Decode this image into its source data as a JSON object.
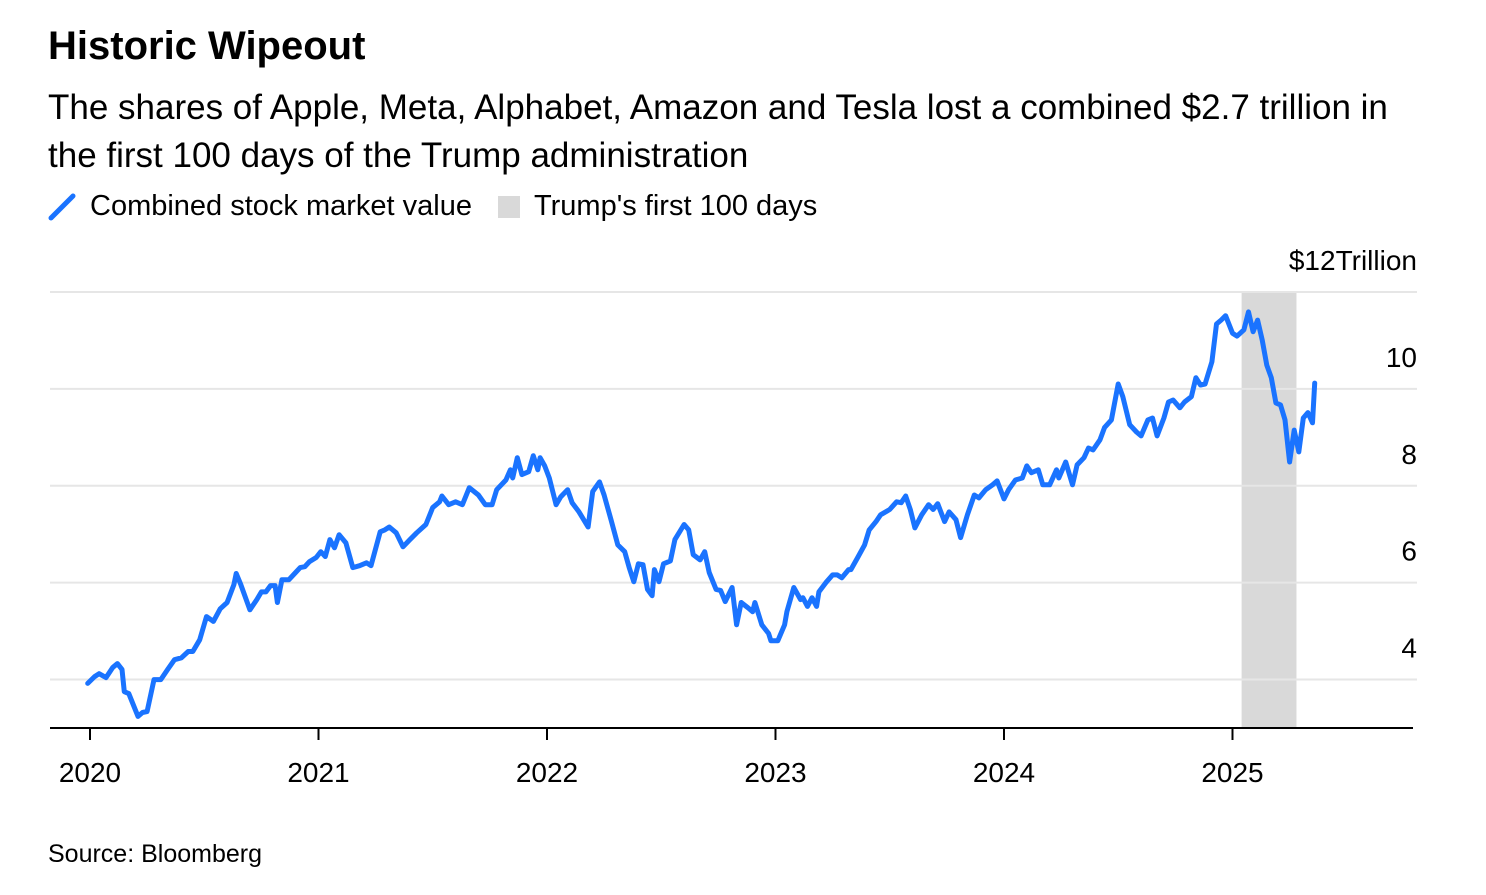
{
  "chart_data": {
    "type": "line",
    "title": "Historic Wipeout",
    "subtitle": "The shares of Apple, Meta, Alphabet, Amazon and Tesla lost a combined $2.7 trillion in the first 100 days of the Trump administration",
    "source": "Source: Bloomberg",
    "x": [
      2019.99,
      2020.02,
      2020.04,
      2020.07,
      2020.1,
      2020.12,
      2020.14,
      2020.15,
      2020.17,
      2020.21,
      2020.23,
      2020.25,
      2020.28,
      2020.31,
      2020.34,
      2020.37,
      2020.4,
      2020.43,
      2020.45,
      2020.48,
      2020.51,
      2020.54,
      2020.57,
      2020.6,
      2020.63,
      2020.64,
      2020.66,
      2020.7,
      2020.73,
      2020.75,
      2020.77,
      2020.79,
      2020.81,
      2020.82,
      2020.84,
      2020.87,
      2020.9,
      2020.92,
      2020.94,
      2020.96,
      2020.99,
      2021.01,
      2021.03,
      2021.05,
      2021.07,
      2021.09,
      2021.12,
      2021.15,
      2021.18,
      2021.21,
      2021.23,
      2021.27,
      2021.29,
      2021.31,
      2021.34,
      2021.37,
      2021.4,
      2021.43,
      2021.47,
      2021.5,
      2021.53,
      2021.54,
      2021.57,
      2021.6,
      2021.63,
      2021.66,
      2021.7,
      2021.73,
      2021.76,
      2021.78,
      2021.82,
      2021.84,
      2021.85,
      2021.87,
      2021.89,
      2021.92,
      2021.94,
      2021.96,
      2021.97,
      2021.99,
      2022.01,
      2022.04,
      2022.06,
      2022.09,
      2022.11,
      2022.14,
      2022.18,
      2022.2,
      2022.23,
      2022.25,
      2022.28,
      2022.31,
      2022.34,
      2022.36,
      2022.38,
      2022.4,
      2022.42,
      2022.44,
      2022.46,
      2022.47,
      2022.49,
      2022.51,
      2022.54,
      2022.56,
      2022.6,
      2022.62,
      2022.64,
      2022.67,
      2022.69,
      2022.71,
      2022.74,
      2022.76,
      2022.78,
      2022.81,
      2022.83,
      2022.85,
      2022.88,
      2022.9,
      2022.91,
      2022.94,
      2022.97,
      2022.98,
      2023.01,
      2023.04,
      2023.05,
      2023.08,
      2023.11,
      2023.12,
      2023.14,
      2023.16,
      2023.18,
      2023.19,
      2023.22,
      2023.25,
      2023.27,
      2023.29,
      2023.32,
      2023.33,
      2023.36,
      2023.39,
      2023.41,
      2023.44,
      2023.46,
      2023.5,
      2023.53,
      2023.55,
      2023.57,
      2023.59,
      2023.61,
      2023.64,
      2023.67,
      2023.69,
      2023.71,
      2023.74,
      2023.76,
      2023.79,
      2023.81,
      2023.84,
      2023.87,
      2023.89,
      2023.92,
      2023.95,
      2023.97,
      2024.0,
      2024.02,
      2024.05,
      2024.08,
      2024.1,
      2024.12,
      2024.15,
      2024.17,
      2024.2,
      2024.23,
      2024.24,
      2024.27,
      2024.3,
      2024.32,
      2024.35,
      2024.37,
      2024.39,
      2024.42,
      2024.44,
      2024.47,
      2024.5,
      2024.52,
      2024.55,
      2024.58,
      2024.6,
      2024.63,
      2024.65,
      2024.67,
      2024.7,
      2024.72,
      2024.74,
      2024.77,
      2024.79,
      2024.82,
      2024.84,
      2024.86,
      2024.88,
      2024.91,
      2024.93,
      2024.95,
      2024.97,
      2025.0,
      2025.02,
      2025.05,
      2025.07,
      2025.09,
      2025.11,
      2025.13,
      2025.15,
      2025.17,
      2025.19,
      2025.21,
      2025.23,
      2025.25,
      2025.27,
      2025.29,
      2025.31,
      2025.33,
      2025.35,
      2025.36
    ],
    "series": [
      {
        "name": "Combined stock market value",
        "color": "#1a73ff",
        "values": [
          3.92,
          4.06,
          4.12,
          4.04,
          4.25,
          4.33,
          4.21,
          3.75,
          3.71,
          3.24,
          3.32,
          3.34,
          4.0,
          4.0,
          4.21,
          4.41,
          4.45,
          4.58,
          4.58,
          4.82,
          5.3,
          5.2,
          5.46,
          5.59,
          5.96,
          6.19,
          5.96,
          5.44,
          5.65,
          5.81,
          5.81,
          5.94,
          5.94,
          5.59,
          6.06,
          6.06,
          6.21,
          6.31,
          6.33,
          6.43,
          6.52,
          6.64,
          6.54,
          6.89,
          6.72,
          6.99,
          6.82,
          6.31,
          6.35,
          6.41,
          6.35,
          7.05,
          7.09,
          7.15,
          7.03,
          6.74,
          6.89,
          7.03,
          7.2,
          7.55,
          7.67,
          7.79,
          7.61,
          7.67,
          7.61,
          7.96,
          7.81,
          7.61,
          7.61,
          7.92,
          8.12,
          8.33,
          8.16,
          8.58,
          8.23,
          8.29,
          8.62,
          8.33,
          8.58,
          8.41,
          8.16,
          7.61,
          7.77,
          7.92,
          7.65,
          7.46,
          7.15,
          7.88,
          8.08,
          7.81,
          7.3,
          6.78,
          6.64,
          6.31,
          6.02,
          6.39,
          6.37,
          5.86,
          5.73,
          6.27,
          6.02,
          6.39,
          6.45,
          6.89,
          7.2,
          7.09,
          6.58,
          6.47,
          6.64,
          6.21,
          5.86,
          5.84,
          5.61,
          5.9,
          5.13,
          5.59,
          5.48,
          5.4,
          5.59,
          5.13,
          4.95,
          4.8,
          4.8,
          5.13,
          5.4,
          5.9,
          5.65,
          5.69,
          5.51,
          5.69,
          5.51,
          5.81,
          6.0,
          6.16,
          6.16,
          6.1,
          6.27,
          6.27,
          6.52,
          6.78,
          7.09,
          7.26,
          7.4,
          7.51,
          7.67,
          7.65,
          7.79,
          7.51,
          7.13,
          7.4,
          7.61,
          7.51,
          7.63,
          7.26,
          7.46,
          7.3,
          6.93,
          7.4,
          7.81,
          7.75,
          7.92,
          8.02,
          8.1,
          7.73,
          7.92,
          8.12,
          8.16,
          8.41,
          8.27,
          8.33,
          8.02,
          8.02,
          8.33,
          8.16,
          8.49,
          8.02,
          8.43,
          8.58,
          8.78,
          8.74,
          8.95,
          9.2,
          9.36,
          10.1,
          9.84,
          9.26,
          9.11,
          9.03,
          9.36,
          9.4,
          9.03,
          9.4,
          9.73,
          9.77,
          9.61,
          9.73,
          9.84,
          10.23,
          10.08,
          10.1,
          10.56,
          11.34,
          11.42,
          11.51,
          11.15,
          11.09,
          11.22,
          11.59,
          11.18,
          11.42,
          11.01,
          10.49,
          10.23,
          9.71,
          9.67,
          9.36,
          8.49,
          9.15,
          8.7,
          9.4,
          9.51,
          9.3,
          10.12
        ]
      }
    ],
    "bands": [
      {
        "name": "Trump's first 100 days",
        "color": "#d9d9d9",
        "x": [
          2025.04,
          2025.28
        ]
      }
    ],
    "xlim": [
      2019.825,
      2025.79
    ],
    "xticks": [
      2020,
      2021,
      2022,
      2023,
      2024,
      2025
    ],
    "ylim": [
      3,
      12
    ],
    "yticks": [
      4,
      6,
      8,
      10,
      {
        "value": 12,
        "label": "$12Trillion"
      }
    ],
    "grid": true
  }
}
